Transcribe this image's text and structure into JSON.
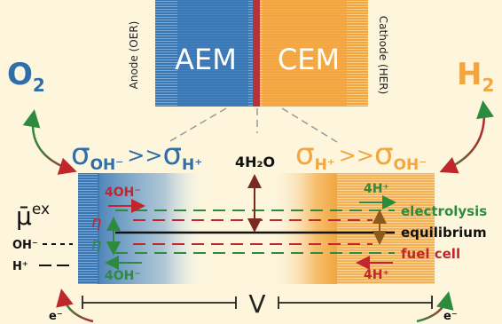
{
  "membrane": {
    "left": "AEM",
    "right": "CEM",
    "anode": "Anode (OER)",
    "cathode": "Cathode (HER)"
  },
  "gases": {
    "left": {
      "base": "O",
      "sub": "2"
    },
    "right": {
      "base": "H",
      "sub": "2"
    }
  },
  "ratios": {
    "left": {
      "a": {
        "base": "σ",
        "sub": "OH⁻"
      },
      "op": ">>",
      "b": {
        "base": "σ",
        "sub": "H⁺"
      }
    },
    "middle": "4H₂O",
    "right": {
      "a": {
        "base": "σ",
        "sub": "H⁺"
      },
      "op": ">>",
      "b": {
        "base": "σ",
        "sub": "OH⁻"
      }
    }
  },
  "potential": {
    "symbol": {
      "base": "μ̄",
      "sup": "ex"
    },
    "oh": "OH⁻",
    "h": "H⁺"
  },
  "left_labels": {
    "top": "4OH⁻",
    "eta_top": "η",
    "eta_bottom": "η",
    "bottom": "4OH⁻"
  },
  "right_labels": {
    "top": "4H⁺",
    "bottom": "4H⁺"
  },
  "levels": {
    "electrolysis": "electrolysis",
    "equilibrium": "equilibrium",
    "fuel_cell": "fuel cell"
  },
  "voltage": "V",
  "electrons": {
    "left": "e⁻",
    "right": "e⁻"
  }
}
